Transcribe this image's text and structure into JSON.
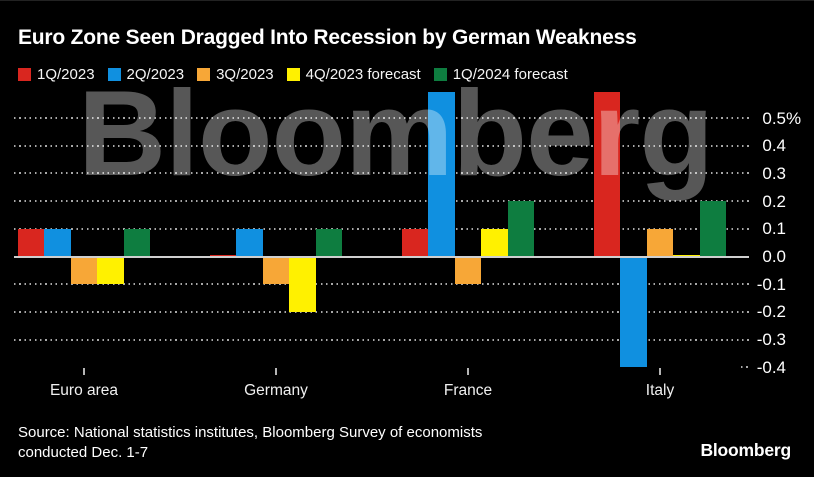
{
  "header": {
    "title": "Euro Zone Seen Dragged Into Recession by German Weakness"
  },
  "chart_data": {
    "type": "bar",
    "title": "Euro Zone Seen Dragged Into Recession by German Weakness",
    "unit": "%",
    "categories": [
      "Euro area",
      "Germany",
      "France",
      "Italy"
    ],
    "series": [
      {
        "name": "1Q/2023",
        "color": "#d9261f",
        "values": [
          0.1,
          0.0,
          0.1,
          0.6
        ]
      },
      {
        "name": "2Q/2023",
        "color": "#1090e0",
        "values": [
          0.1,
          0.1,
          0.6,
          -0.4
        ]
      },
      {
        "name": "3Q/2023",
        "color": "#f7a737",
        "values": [
          -0.1,
          -0.1,
          -0.1,
          0.1
        ]
      },
      {
        "name": "4Q/2023 forecast",
        "color": "#fff100",
        "values": [
          -0.1,
          -0.2,
          0.1,
          0.0
        ]
      },
      {
        "name": "1Q/2024 forecast",
        "color": "#0e7d40",
        "values": [
          0.1,
          0.1,
          0.2,
          0.2
        ]
      }
    ],
    "y_ticks": [
      {
        "value": 0.5,
        "label": "0.5%"
      },
      {
        "value": 0.4,
        "label": "0.4"
      },
      {
        "value": 0.3,
        "label": "0.3"
      },
      {
        "value": 0.2,
        "label": "0.2"
      },
      {
        "value": 0.1,
        "label": "0.1"
      },
      {
        "value": 0.0,
        "label": "0.0"
      },
      {
        "value": -0.1,
        "label": "-0.1"
      },
      {
        "value": -0.2,
        "label": "-0.2"
      },
      {
        "value": -0.3,
        "label": "-0.3"
      },
      {
        "value": -0.4,
        "label": "-0.4"
      }
    ],
    "ylim": [
      -0.45,
      0.6
    ],
    "grid": "dotted-horizontal",
    "zero_line": true,
    "legend_position": "top"
  },
  "watermark": {
    "text": "Bloomberg"
  },
  "footer": {
    "source_line1": "Source: National statistics institutes, Bloomberg Survey of economists",
    "source_line2": "conducted Dec. 1-7",
    "logo": "Bloomberg"
  }
}
